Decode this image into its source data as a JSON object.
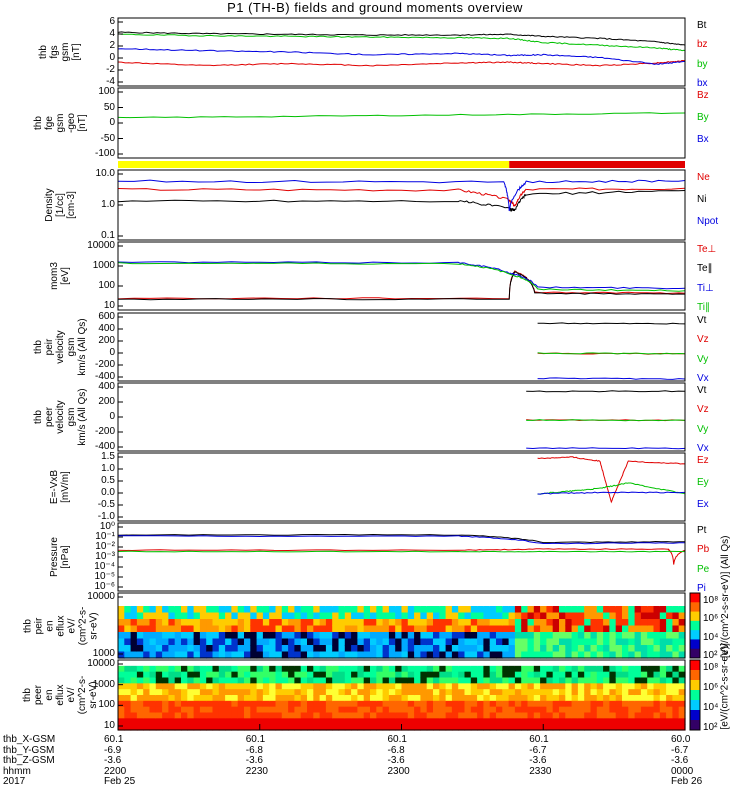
{
  "title": "P1 (TH-B) fields and ground moments overview",
  "x_axis": {
    "row_labels": [
      "thb_X-GSM",
      "thb_Y-GSM",
      "thb_Z-GSM",
      "hhmm",
      "2017"
    ],
    "columns": [
      {
        "values": [
          "60.1",
          "-6.9",
          "-3.6",
          "2200",
          "Feb 25"
        ]
      },
      {
        "values": [
          "60.1",
          "-6.8",
          "-3.6",
          "2230",
          ""
        ]
      },
      {
        "values": [
          "60.1",
          "-6.8",
          "-3.6",
          "2300",
          ""
        ]
      },
      {
        "values": [
          "60.1",
          "-6.7",
          "-3.6",
          "2330",
          ""
        ]
      },
      {
        "values": [
          "60.0",
          "-6.7",
          "-3.6",
          "0000",
          "Feb 26"
        ]
      }
    ]
  },
  "colors": {
    "black": "#000000",
    "red": "#e00000",
    "green": "#00c000",
    "blue": "#0000e0",
    "yellow": "#ffff00"
  },
  "mode_bar": {
    "segments": [
      {
        "color": "#ffff00",
        "fraction": 0.69
      },
      {
        "color": "#e00000",
        "fraction": 0.31
      }
    ]
  },
  "chart_data": [
    {
      "type": "line",
      "ylabel": [
        "thb",
        "fgs",
        "gsm",
        "[nT]"
      ],
      "ylim": [
        -4,
        6
      ],
      "yticks": [
        "6",
        "4",
        "2",
        "0",
        "-2",
        "-4"
      ],
      "series": [
        {
          "name": "Bt",
          "color": "#000000",
          "x": [
            0,
            0.15,
            0.3,
            0.45,
            0.6,
            0.69,
            0.75,
            0.85,
            0.95,
            1.0
          ],
          "values": [
            3.9,
            3.7,
            3.6,
            3.5,
            3.5,
            3.6,
            3.3,
            3.0,
            2.5,
            2.0
          ]
        },
        {
          "name": "bz",
          "color": "#e00000",
          "x": [
            0,
            0.15,
            0.3,
            0.45,
            0.6,
            0.69,
            0.75,
            0.85,
            0.95,
            1.0
          ],
          "values": [
            -0.5,
            -1.0,
            -0.7,
            -1.0,
            -0.6,
            -0.5,
            -0.7,
            -1.0,
            -0.6,
            -0.3
          ]
        },
        {
          "name": "by",
          "color": "#00c000",
          "x": [
            0,
            0.15,
            0.3,
            0.45,
            0.6,
            0.69,
            0.75,
            0.85,
            0.95,
            1.0
          ],
          "values": [
            3.6,
            3.4,
            3.3,
            3.2,
            3.1,
            3.0,
            2.4,
            2.0,
            1.6,
            1.2
          ]
        },
        {
          "name": "bx",
          "color": "#0000e0",
          "x": [
            0,
            0.15,
            0.3,
            0.45,
            0.6,
            0.69,
            0.75,
            0.85,
            0.95,
            1.0
          ],
          "values": [
            1.5,
            1.2,
            1.0,
            0.6,
            0.8,
            0.5,
            0.6,
            0.2,
            -0.8,
            -0.4
          ]
        }
      ]
    },
    {
      "type": "line",
      "ylabel": [
        "thb",
        "fge",
        "gsm",
        "-geo",
        "[nT]"
      ],
      "ylim": [
        -120,
        110
      ],
      "yticks": [
        "100",
        "50",
        "0",
        "-50",
        "-100"
      ],
      "series": [
        {
          "name": "Bz",
          "color": "#e00000",
          "x": [],
          "values": []
        },
        {
          "name": "By",
          "color": "#00c000",
          "x": [
            0,
            0.5,
            1.0
          ],
          "values": [
            12,
            20,
            28
          ]
        },
        {
          "name": "Bx",
          "color": "#0000e0",
          "x": [],
          "values": []
        }
      ]
    },
    {
      "type": "line",
      "scale": "log",
      "ylabel": [
        "Density",
        "[1/cc]",
        "[cm-3]"
      ],
      "ylim": [
        0.1,
        10
      ],
      "yticks": [
        "10.0",
        "1.0",
        "0.1"
      ],
      "series": [
        {
          "name": "Ne",
          "color": "#e00000",
          "x": [
            0,
            0.6,
            0.69,
            0.7,
            0.72,
            1.0
          ],
          "values": [
            2.8,
            2.7,
            1.4,
            0.9,
            2.8,
            3.0
          ]
        },
        {
          "name": "Ni",
          "color": "#000000",
          "x": [
            0,
            0.6,
            0.69,
            0.7,
            0.72,
            1.0
          ],
          "values": [
            1.3,
            1.3,
            0.8,
            0.7,
            2.0,
            2.6
          ]
        },
        {
          "name": "Npot",
          "color": "#0000e0",
          "x": [
            0,
            0.68,
            0.69,
            0.72,
            1.0
          ],
          "values": [
            4.8,
            4.6,
            0.7,
            4.5,
            5.0
          ]
        }
      ]
    },
    {
      "type": "line",
      "scale": "log",
      "ylabel": [
        "mom3",
        "[eV]"
      ],
      "ylim": [
        3,
        10000
      ],
      "yticks": [
        "10000",
        "1000",
        "100",
        "10"
      ],
      "series": [
        {
          "name": "Te⊥",
          "color": "#e00000",
          "x": [
            0,
            0.69,
            0.7,
            0.735,
            1.0
          ],
          "values": [
            12,
            12,
            300,
            25,
            22
          ]
        },
        {
          "name": "Te∥",
          "color": "#000000",
          "x": [
            0,
            0.69,
            0.7,
            0.735,
            1.0
          ],
          "values": [
            11,
            11,
            280,
            22,
            20
          ]
        },
        {
          "name": "Ti⊥",
          "color": "#0000e0",
          "x": [
            0,
            0.6,
            0.69,
            0.74,
            1.0
          ],
          "values": [
            900,
            850,
            250,
            45,
            40
          ]
        },
        {
          "name": "Ti∥",
          "color": "#00c000",
          "x": [
            0,
            0.6,
            0.69,
            0.74,
            1.0
          ],
          "values": [
            800,
            750,
            220,
            35,
            30
          ]
        }
      ]
    },
    {
      "type": "line",
      "ylabel": [
        "thb",
        "peir",
        "velocity",
        "gsm",
        "km/s (All Qs)"
      ],
      "ylim": [
        -400,
        600
      ],
      "yticks": [
        "600",
        "400",
        "200",
        "0",
        "-200",
        "-400"
      ],
      "series": [
        {
          "name": "Vt",
          "color": "#000000",
          "x": [
            0.74,
            1.0
          ],
          "values": [
            450,
            440
          ]
        },
        {
          "name": "Vz",
          "color": "#e00000",
          "x": [
            0.74,
            1.0
          ],
          "values": [
            5,
            0
          ]
        },
        {
          "name": "Vy",
          "color": "#00c000",
          "x": [
            0.74,
            1.0
          ],
          "values": [
            10,
            0
          ]
        },
        {
          "name": "Vx",
          "color": "#0000e0",
          "x": [
            0.74,
            1.0
          ],
          "values": [
            -360,
            -370
          ]
        }
      ]
    },
    {
      "type": "line",
      "ylabel": [
        "thb",
        "peer",
        "velocity",
        "gsm",
        "km/s (All Qs)"
      ],
      "ylim": [
        -400,
        500
      ],
      "yticks": [
        "400",
        "200",
        "0",
        "-200",
        "-400"
      ],
      "series": [
        {
          "name": "Vt",
          "color": "#000000",
          "x": [
            0.72,
            1.0
          ],
          "values": [
            390,
            390
          ]
        },
        {
          "name": "Vz",
          "color": "#e00000",
          "x": [
            0.72,
            1.0
          ],
          "values": [
            10,
            5
          ]
        },
        {
          "name": "Vy",
          "color": "#00c000",
          "x": [
            0.72,
            1.0
          ],
          "values": [
            10,
            5
          ]
        },
        {
          "name": "Vx",
          "color": "#0000e0",
          "x": [
            0.72,
            1.0
          ],
          "values": [
            -360,
            -365
          ]
        }
      ]
    },
    {
      "type": "line",
      "ylabel": [
        "E=-VxB",
        "[mV/m]"
      ],
      "ylim": [
        -1.0,
        1.5
      ],
      "yticks": [
        "1.5",
        "1.0",
        "0.5",
        "0.0",
        "-0.5",
        "-1.0"
      ],
      "series": [
        {
          "name": "Ez",
          "color": "#e00000",
          "x": [
            0.74,
            0.8,
            0.85,
            0.87,
            0.9,
            1.0
          ],
          "values": [
            1.3,
            1.35,
            1.2,
            -0.3,
            1.2,
            1.1
          ]
        },
        {
          "name": "Ey",
          "color": "#00c000",
          "x": [
            0.74,
            0.8,
            0.85,
            0.9,
            1.0
          ],
          "values": [
            0.0,
            0.1,
            0.2,
            0.4,
            0.0
          ]
        },
        {
          "name": "Ex",
          "color": "#0000e0",
          "x": [
            0.74,
            0.85,
            1.0
          ],
          "values": [
            0.0,
            0.05,
            0.05
          ]
        }
      ]
    },
    {
      "type": "line",
      "scale": "log",
      "ylabel": [
        "Pressure",
        "[nPa]"
      ],
      "ylim": [
        1e-06,
        1
      ],
      "yticks": [
        "10⁰",
        "10⁻¹",
        "10⁻²",
        "10⁻³",
        "10⁻⁴",
        "10⁻⁵",
        "10⁻⁶"
      ],
      "series": [
        {
          "name": "Pt",
          "color": "#000000",
          "x": [
            0,
            0.6,
            0.75,
            1.0
          ],
          "values": [
            0.09,
            0.09,
            0.02,
            0.022
          ]
        },
        {
          "name": "Pb",
          "color": "#e00000",
          "x": [
            0,
            0.6,
            0.75,
            0.97,
            0.98,
            1.0
          ],
          "values": [
            0.004,
            0.004,
            0.005,
            0.005,
            0.0002,
            0.004
          ]
        },
        {
          "name": "Pe",
          "color": "#00c000",
          "x": [
            0,
            0.6,
            0.75,
            1.0
          ],
          "values": [
            0.003,
            0.003,
            0.003,
            0.003
          ]
        },
        {
          "name": "Pi",
          "color": "#0000e0",
          "x": [
            0,
            0.6,
            0.75,
            1.0
          ],
          "values": [
            0.07,
            0.07,
            0.015,
            0.018
          ]
        }
      ]
    },
    {
      "type": "heatmap",
      "ylabel": [
        "thb",
        "peir",
        "en",
        "eflux",
        "eV/",
        "(cm^2-s-",
        "sr-eV)"
      ],
      "yticks": [
        "10000",
        "1000"
      ],
      "colorbar_label": "[eV/(cm^2-s-sr-eV)] (All Qs)",
      "colorbar_ticks": [
        "10⁸",
        "10⁶",
        "10⁴",
        "10²"
      ]
    },
    {
      "type": "heatmap",
      "ylabel": [
        "thb",
        "peer",
        "en",
        "eflux",
        "eV/",
        "(cm^2-s-",
        "sr-eV)"
      ],
      "yticks": [
        "10000",
        "1000",
        "100",
        "10"
      ],
      "colorbar_label": "[eV/(cm^2-s-sr-eV)]",
      "colorbar_ticks": [
        "10⁸",
        "10⁶",
        "10⁴",
        "10²"
      ]
    }
  ]
}
